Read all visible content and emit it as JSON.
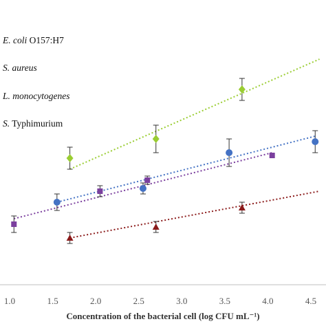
{
  "chart_data": {
    "type": "scatter",
    "xlabel": "Concentration of the bacterial cell (log CFU mL⁻¹)",
    "ylabel": "",
    "xlim": [
      0.95,
      4.6
    ],
    "ylim": [
      0,
      100
    ],
    "x_ticks": [
      "1.0",
      "1.5",
      "2.0",
      "2.5",
      "3.0",
      "3.5",
      "4.0",
      "4.5"
    ],
    "grid": false,
    "legend_position": "top-left",
    "trendlines": "dotted linear fit per series",
    "series": [
      {
        "name_genus": "E. coli",
        "name_rest": " O157:H7",
        "color": "#9ACD32",
        "marker": "diamond",
        "x": [
          1.7,
          2.7,
          3.7
        ],
        "y": [
          46,
          53,
          71
        ],
        "err": [
          4,
          5,
          4
        ],
        "fit": {
          "x0": 1.7,
          "y0": 42,
          "x1": 4.6,
          "y1": 82
        }
      },
      {
        "name_genus": "S. aureus",
        "name_rest": "",
        "color": "#4472C4",
        "marker": "circle",
        "x": [
          1.55,
          2.55,
          3.55,
          4.55
        ],
        "y": [
          30,
          35,
          48,
          52
        ],
        "err": [
          3,
          2,
          5,
          4
        ],
        "fit": {
          "x0": 1.55,
          "y0": 30,
          "x1": 4.55,
          "y1": 54
        }
      },
      {
        "name_genus": "L. monocytogenes",
        "name_rest": "",
        "color": "#7B3F9E",
        "marker": "square",
        "x": [
          1.05,
          2.05,
          2.6,
          4.05
        ],
        "y": [
          22,
          34,
          38,
          47
        ],
        "err": [
          3,
          2,
          1.5,
          0
        ],
        "fit": {
          "x0": 1.05,
          "y0": 24,
          "x1": 4.05,
          "y1": 48
        }
      },
      {
        "name_genus": "S.",
        "name_rest": " Typhimurium",
        "color": "#8B1A1A",
        "marker": "triangle",
        "x": [
          1.7,
          2.7,
          3.7
        ],
        "y": [
          17,
          21,
          28
        ],
        "err": [
          2,
          2,
          2
        ],
        "fit": {
          "x0": 1.7,
          "y0": 17,
          "x1": 4.6,
          "y1": 34
        }
      }
    ]
  }
}
